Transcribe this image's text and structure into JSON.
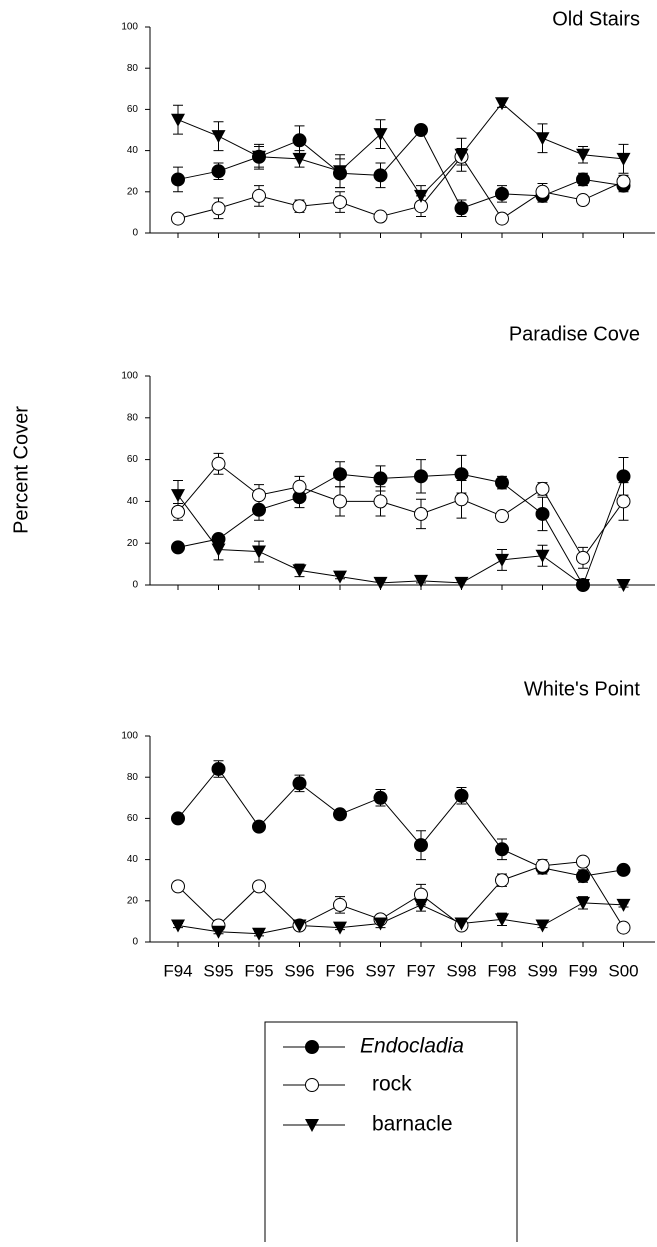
{
  "y_label": "Percent Cover",
  "chart_data": [
    {
      "type": "line",
      "title": "Old Stairs",
      "categories": [
        null,
        null,
        null,
        null,
        null,
        null,
        null,
        null,
        null,
        null,
        null,
        null
      ],
      "ylim": [
        0,
        100
      ],
      "yticks": [
        0,
        20,
        40,
        60,
        80,
        100
      ],
      "series": [
        {
          "name": "Endocladia",
          "marker": "filled-circle",
          "color": "#000000",
          "values": [
            26,
            30,
            37,
            45,
            29,
            28,
            50,
            12,
            19,
            18,
            26,
            23
          ],
          "errors": [
            6,
            4,
            6,
            7,
            7,
            6,
            2,
            4,
            4,
            3,
            3,
            3
          ]
        },
        {
          "name": "rock",
          "marker": "open-circle",
          "color": "#000000",
          "values": [
            7,
            12,
            18,
            13,
            15,
            8,
            13,
            37,
            7,
            20,
            16,
            25
          ],
          "errors": [
            2,
            5,
            5,
            3,
            5,
            2,
            5,
            4,
            2,
            4,
            2,
            3
          ]
        },
        {
          "name": "barnacle",
          "marker": "filled-triangle-down",
          "color": "#000000",
          "values": [
            55,
            47,
            37,
            36,
            30,
            48,
            18,
            38,
            63,
            46,
            38,
            36
          ],
          "errors": [
            7,
            7,
            5,
            4,
            8,
            7,
            5,
            8,
            2,
            7,
            4,
            7
          ]
        }
      ]
    },
    {
      "type": "line",
      "title": "Paradise Cove",
      "categories": [
        null,
        null,
        null,
        null,
        null,
        null,
        null,
        null,
        null,
        null,
        null,
        null
      ],
      "ylim": [
        0,
        100
      ],
      "yticks": [
        0,
        20,
        40,
        60,
        80,
        100
      ],
      "series": [
        {
          "marker": "filled-circle",
          "color": "#000000",
          "values": [
            18,
            22,
            36,
            42,
            53,
            51,
            52,
            53,
            49,
            34,
            0,
            52
          ],
          "errors": [
            1,
            2,
            5,
            5,
            6,
            6,
            8,
            9,
            3,
            8,
            1,
            9
          ]
        },
        {
          "marker": "open-circle",
          "color": "#000000",
          "values": [
            35,
            58,
            43,
            47,
            40,
            40,
            34,
            41,
            33,
            46,
            13,
            40
          ],
          "errors": [
            4,
            5,
            5,
            5,
            7,
            7,
            7,
            9,
            1,
            3,
            5,
            9
          ]
        },
        {
          "marker": "filled-triangle-down",
          "color": "#000000",
          "values": [
            43,
            17,
            16,
            7,
            4,
            1,
            2,
            1,
            12,
            14,
            0,
            0
          ],
          "errors": [
            7,
            5,
            5,
            3,
            1,
            1,
            1,
            1,
            5,
            5,
            1,
            1
          ]
        }
      ]
    },
    {
      "type": "line",
      "title": "White's Point",
      "categories": [
        "F94",
        "S95",
        "F95",
        "S96",
        "F96",
        "S97",
        "F97",
        "S98",
        "F98",
        "S99",
        "F99",
        "S00"
      ],
      "ylim": [
        0,
        100
      ],
      "yticks": [
        0,
        20,
        40,
        60,
        80,
        100
      ],
      "series": [
        {
          "marker": "filled-circle",
          "color": "#000000",
          "values": [
            60,
            84,
            56,
            77,
            62,
            70,
            47,
            71,
            45,
            36,
            32,
            35
          ],
          "errors": [
            1,
            4,
            1,
            4,
            1,
            4,
            7,
            4,
            5,
            3,
            3,
            1
          ]
        },
        {
          "marker": "open-circle",
          "color": "#000000",
          "values": [
            27,
            8,
            27,
            8,
            18,
            11,
            23,
            8,
            30,
            37,
            39,
            7
          ],
          "errors": [
            1,
            2,
            1,
            2,
            4,
            2,
            5,
            2,
            3,
            3,
            1,
            1
          ]
        },
        {
          "marker": "filled-triangle-down",
          "color": "#000000",
          "values": [
            8,
            5,
            4,
            8,
            7,
            9,
            18,
            9,
            11,
            8,
            19,
            18
          ],
          "errors": [
            1,
            1,
            1,
            2,
            1,
            2,
            3,
            2,
            3,
            1,
            3,
            1
          ]
        }
      ]
    }
  ]
}
